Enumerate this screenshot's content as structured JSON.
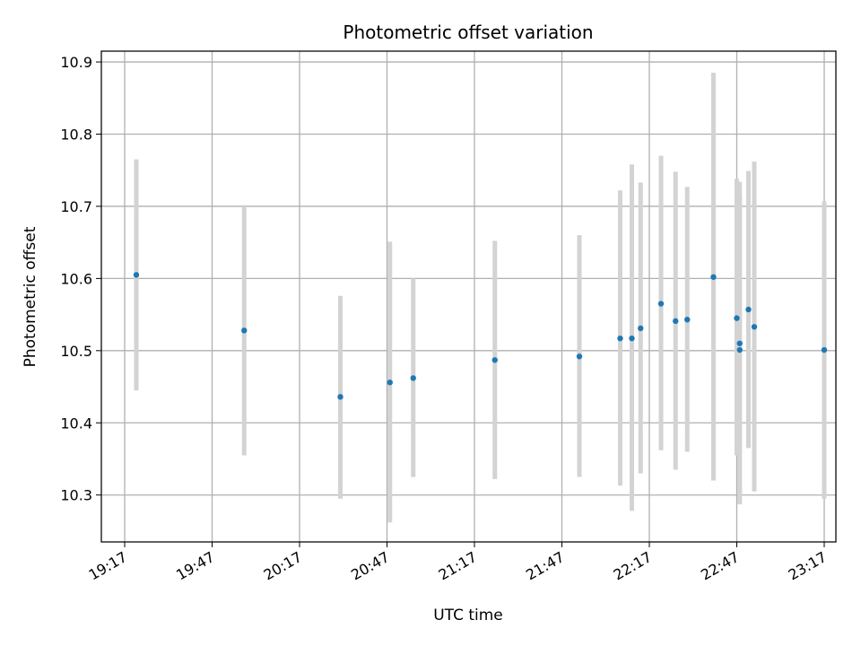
{
  "chart_data": {
    "type": "scatter",
    "title": "Photometric offset variation",
    "xlabel": "UTC time",
    "ylabel": "Photometric offset",
    "x_ticks": [
      "19:17",
      "19:47",
      "20:17",
      "20:47",
      "21:17",
      "21:47",
      "22:17",
      "22:47",
      "23:17"
    ],
    "x_range": [
      "19:09",
      "23:21"
    ],
    "ylim": [
      10.235,
      10.915
    ],
    "y_ticks": [
      10.3,
      10.4,
      10.5,
      10.6,
      10.7,
      10.8,
      10.9
    ],
    "grid": true,
    "colors": {
      "point": "#1f77b4",
      "errorbar": "#d3d3d3",
      "grid": "#b0b0b0"
    },
    "points": [
      {
        "time": "19:21",
        "value": 10.605,
        "err_low": 10.445,
        "err_high": 10.765
      },
      {
        "time": "19:58",
        "value": 10.528,
        "err_low": 10.355,
        "err_high": 10.7
      },
      {
        "time": "20:31",
        "value": 10.436,
        "err_low": 10.295,
        "err_high": 10.576
      },
      {
        "time": "20:48",
        "value": 10.456,
        "err_low": 10.262,
        "err_high": 10.651
      },
      {
        "time": "20:56",
        "value": 10.462,
        "err_low": 10.325,
        "err_high": 10.6
      },
      {
        "time": "21:24",
        "value": 10.487,
        "err_low": 10.322,
        "err_high": 10.652
      },
      {
        "time": "21:53",
        "value": 10.492,
        "err_low": 10.325,
        "err_high": 10.66
      },
      {
        "time": "22:07",
        "value": 10.517,
        "err_low": 10.313,
        "err_high": 10.722
      },
      {
        "time": "22:11",
        "value": 10.517,
        "err_low": 10.278,
        "err_high": 10.758
      },
      {
        "time": "22:14",
        "value": 10.531,
        "err_low": 10.33,
        "err_high": 10.733
      },
      {
        "time": "22:21",
        "value": 10.565,
        "err_low": 10.362,
        "err_high": 10.77
      },
      {
        "time": "22:26",
        "value": 10.541,
        "err_low": 10.335,
        "err_high": 10.748
      },
      {
        "time": "22:30",
        "value": 10.543,
        "err_low": 10.36,
        "err_high": 10.727
      },
      {
        "time": "22:39",
        "value": 10.602,
        "err_low": 10.32,
        "err_high": 10.885
      },
      {
        "time": "22:47",
        "value": 10.545,
        "err_low": 10.355,
        "err_high": 10.738
      },
      {
        "time": "22:48",
        "value": 10.51,
        "err_low": 10.29,
        "err_high": 10.734
      },
      {
        "time": "22:48",
        "value": 10.501,
        "err_low": 10.287,
        "err_high": 10.715
      },
      {
        "time": "22:51",
        "value": 10.557,
        "err_low": 10.365,
        "err_high": 10.749
      },
      {
        "time": "22:53",
        "value": 10.533,
        "err_low": 10.305,
        "err_high": 10.762
      },
      {
        "time": "23:17",
        "value": 10.501,
        "err_low": 10.295,
        "err_high": 10.707
      }
    ]
  }
}
